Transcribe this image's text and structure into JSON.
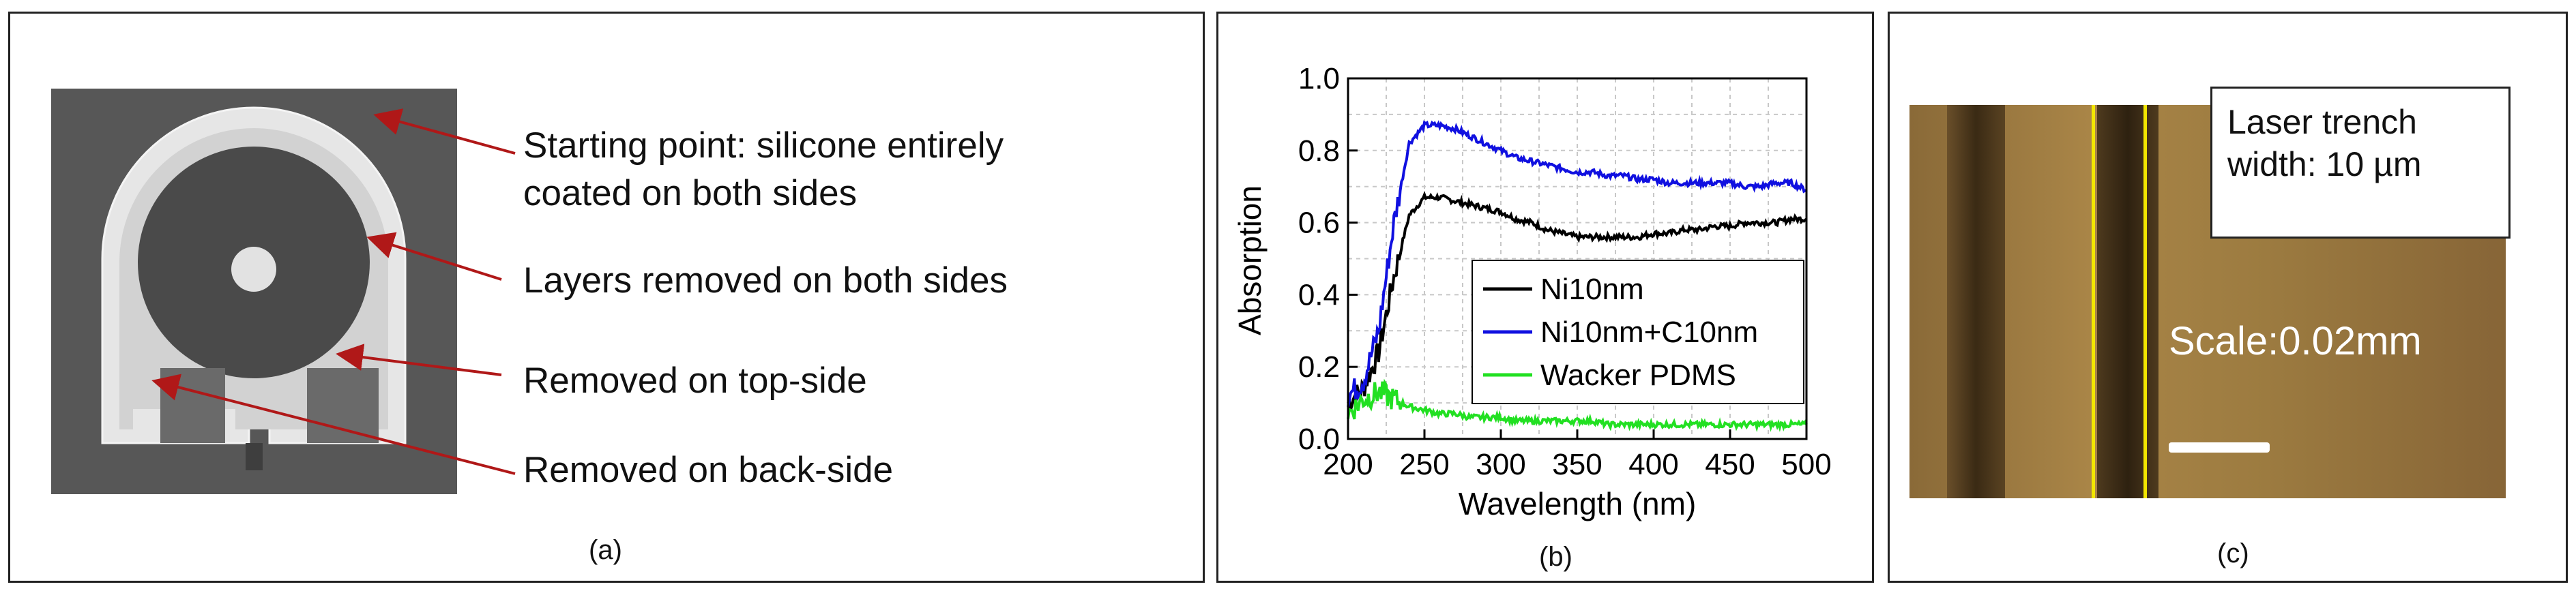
{
  "panel_a": {
    "caption": "(a)",
    "annotations": {
      "starting_point_line1": "Starting point: silicone entirely",
      "starting_point_line2": "coated on both sides",
      "layers_removed": "Layers removed on both sides",
      "removed_top": "Removed on top-side",
      "removed_back": "Removed on back-side"
    },
    "colors": {
      "arrow": "#b01818",
      "background": "#575757",
      "silicone": "#e6e6e6",
      "coating": "#4a4a4a"
    }
  },
  "panel_b": {
    "caption": "(b)"
  },
  "panel_c": {
    "caption": "(c)",
    "info_line1": "Laser trench",
    "info_line2": "width:  10 µm",
    "scale_label": "Scale:0.02mm",
    "colors": {
      "marker": "#f2e600",
      "scale_bar": "#ffffff"
    }
  },
  "chart_data": {
    "type": "line",
    "title": "",
    "xlabel": "Wavelength (nm)",
    "ylabel": "Absorption",
    "xlim": [
      200,
      500
    ],
    "ylim": [
      0.0,
      1.0
    ],
    "xticks": [
      200,
      250,
      300,
      350,
      400,
      450,
      500
    ],
    "yticks": [
      0.0,
      0.2,
      0.4,
      0.6,
      0.8,
      1.0
    ],
    "grid": true,
    "legend_position": "center-right",
    "series": [
      {
        "name": "Ni10nm",
        "color": "#000000",
        "x": [
          200,
          210,
          220,
          230,
          240,
          250,
          260,
          270,
          280,
          290,
          300,
          310,
          320,
          330,
          340,
          350,
          360,
          370,
          380,
          390,
          400,
          410,
          420,
          430,
          440,
          450,
          460,
          470,
          480,
          490,
          500
        ],
        "y": [
          0.1,
          0.14,
          0.24,
          0.45,
          0.62,
          0.67,
          0.67,
          0.66,
          0.65,
          0.64,
          0.63,
          0.61,
          0.6,
          0.58,
          0.57,
          0.56,
          0.56,
          0.56,
          0.56,
          0.56,
          0.57,
          0.57,
          0.58,
          0.58,
          0.59,
          0.59,
          0.6,
          0.6,
          0.6,
          0.61,
          0.61
        ]
      },
      {
        "name": "Ni10nm+C10nm",
        "color": "#1010e0",
        "x": [
          200,
          210,
          220,
          230,
          240,
          250,
          260,
          270,
          280,
          290,
          300,
          310,
          320,
          330,
          340,
          350,
          360,
          370,
          380,
          390,
          400,
          410,
          420,
          430,
          440,
          450,
          460,
          470,
          480,
          490,
          500
        ],
        "y": [
          0.12,
          0.16,
          0.3,
          0.6,
          0.82,
          0.87,
          0.87,
          0.86,
          0.84,
          0.82,
          0.8,
          0.78,
          0.77,
          0.76,
          0.75,
          0.74,
          0.74,
          0.73,
          0.73,
          0.72,
          0.72,
          0.71,
          0.71,
          0.71,
          0.71,
          0.71,
          0.7,
          0.7,
          0.71,
          0.71,
          0.69
        ]
      },
      {
        "name": "Wacker PDMS",
        "color": "#22e022",
        "x": [
          200,
          210,
          220,
          230,
          240,
          250,
          260,
          270,
          280,
          290,
          300,
          310,
          320,
          330,
          340,
          350,
          360,
          370,
          380,
          390,
          400,
          410,
          420,
          430,
          440,
          450,
          460,
          470,
          480,
          490,
          500
        ],
        "y": [
          0.07,
          0.11,
          0.13,
          0.11,
          0.09,
          0.08,
          0.07,
          0.07,
          0.06,
          0.06,
          0.06,
          0.05,
          0.05,
          0.05,
          0.05,
          0.05,
          0.05,
          0.04,
          0.04,
          0.04,
          0.04,
          0.04,
          0.04,
          0.04,
          0.04,
          0.04,
          0.04,
          0.04,
          0.04,
          0.04,
          0.04
        ]
      }
    ]
  }
}
